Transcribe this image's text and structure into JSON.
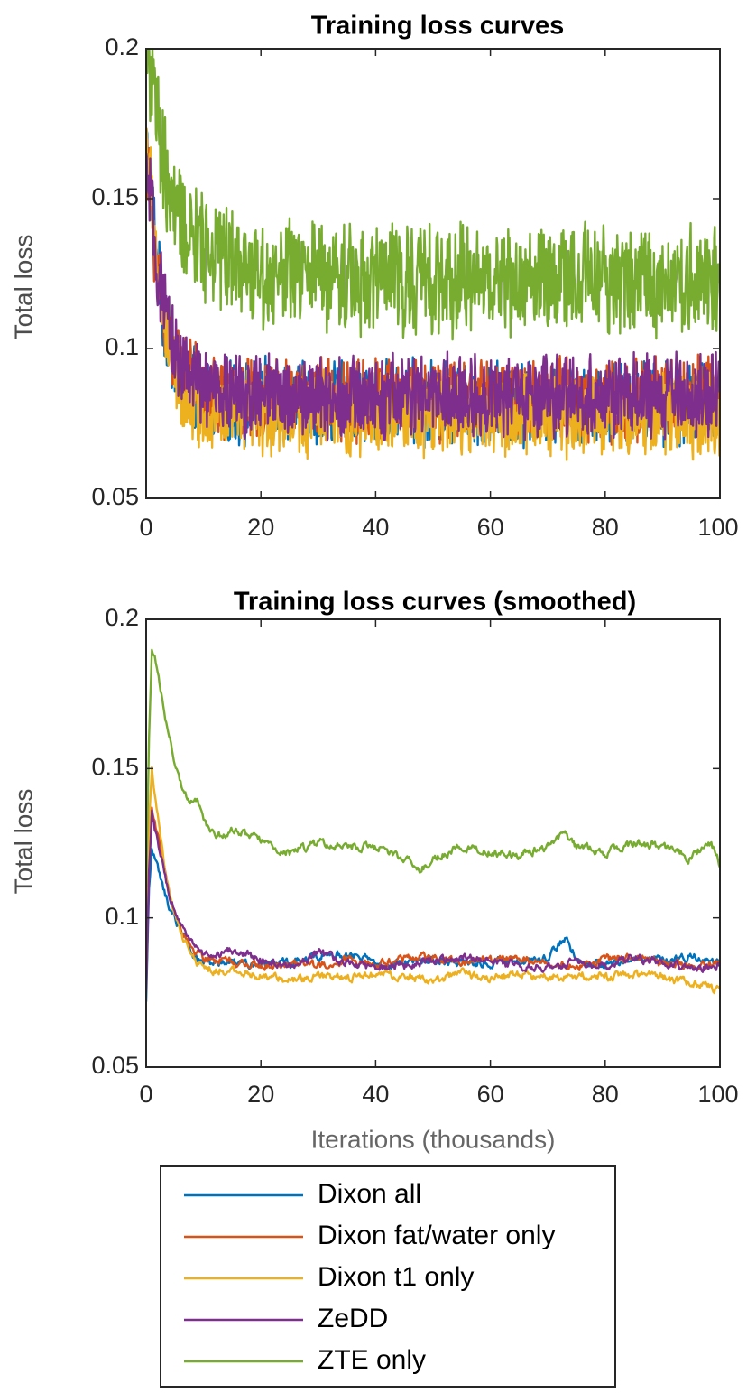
{
  "chart_data": [
    {
      "type": "line",
      "title": "Training loss curves",
      "xlabel": "",
      "ylabel": "Total loss",
      "xlim": [
        0,
        100
      ],
      "ylim": [
        0.05,
        0.2
      ],
      "xticks": [
        "0",
        "20",
        "40",
        "60",
        "80",
        "100"
      ],
      "yticks": [
        "0.05",
        "0.1",
        "0.15",
        "0.2"
      ],
      "noisy": true,
      "series": [
        {
          "name": "Dixon all",
          "color": "#0072BD",
          "x": [
            0,
            1,
            2,
            3,
            5,
            7,
            10,
            15,
            20,
            30,
            40,
            50,
            60,
            70,
            80,
            90,
            100
          ],
          "values": [
            0.17,
            0.15,
            0.125,
            0.11,
            0.095,
            0.088,
            0.083,
            0.082,
            0.082,
            0.082,
            0.082,
            0.082,
            0.082,
            0.082,
            0.082,
            0.082,
            0.082
          ]
        },
        {
          "name": "Dixon fat/water only",
          "color": "#D95319",
          "x": [
            0,
            1,
            2,
            3,
            5,
            7,
            10,
            15,
            20,
            30,
            40,
            50,
            60,
            70,
            80,
            90,
            100
          ],
          "values": [
            0.16,
            0.145,
            0.125,
            0.11,
            0.097,
            0.09,
            0.085,
            0.083,
            0.083,
            0.083,
            0.083,
            0.083,
            0.083,
            0.083,
            0.083,
            0.083,
            0.083
          ]
        },
        {
          "name": "Dixon t1 only",
          "color": "#EDB120",
          "x": [
            0,
            1,
            2,
            3,
            5,
            7,
            10,
            15,
            20,
            30,
            40,
            50,
            60,
            70,
            80,
            90,
            100
          ],
          "values": [
            0.17,
            0.15,
            0.125,
            0.11,
            0.092,
            0.084,
            0.08,
            0.078,
            0.078,
            0.078,
            0.078,
            0.078,
            0.078,
            0.078,
            0.078,
            0.078,
            0.077
          ]
        },
        {
          "name": "ZeDD",
          "color": "#7E2F8E",
          "x": [
            0,
            1,
            2,
            3,
            5,
            7,
            10,
            15,
            20,
            30,
            40,
            50,
            60,
            70,
            80,
            90,
            100
          ],
          "values": [
            0.16,
            0.145,
            0.125,
            0.112,
            0.1,
            0.092,
            0.087,
            0.085,
            0.084,
            0.084,
            0.084,
            0.084,
            0.084,
            0.084,
            0.084,
            0.084,
            0.084
          ]
        },
        {
          "name": "ZTE only",
          "color": "#77AC30",
          "x": [
            0,
            1,
            2,
            3,
            5,
            7,
            10,
            15,
            20,
            30,
            40,
            50,
            60,
            70,
            80,
            90,
            100
          ],
          "values": [
            0.2,
            0.19,
            0.175,
            0.16,
            0.145,
            0.138,
            0.135,
            0.13,
            0.125,
            0.124,
            0.124,
            0.123,
            0.123,
            0.123,
            0.123,
            0.123,
            0.123
          ]
        }
      ]
    },
    {
      "type": "line",
      "title": "Training loss curves (smoothed)",
      "xlabel": "Iterations (thousands)",
      "ylabel": "Total loss",
      "xlim": [
        0,
        100
      ],
      "ylim": [
        0.05,
        0.2
      ],
      "xticks": [
        "0",
        "20",
        "40",
        "60",
        "80",
        "100"
      ],
      "yticks": [
        "0.05",
        "0.1",
        "0.15",
        "0.2"
      ],
      "noisy": false,
      "series": [
        {
          "name": "Dixon all",
          "color": "#0072BD",
          "x": [
            0,
            0.5,
            1,
            1.5,
            2,
            3,
            4,
            6,
            8,
            10,
            15,
            20,
            25,
            30,
            35,
            40,
            45,
            50,
            55,
            60,
            65,
            70,
            73,
            75,
            80,
            85,
            90,
            95,
            100
          ],
          "values": [
            0.072,
            0.11,
            0.123,
            0.12,
            0.117,
            0.11,
            0.104,
            0.096,
            0.088,
            0.085,
            0.085,
            0.085,
            0.085,
            0.087,
            0.088,
            0.085,
            0.085,
            0.086,
            0.085,
            0.085,
            0.085,
            0.087,
            0.093,
            0.087,
            0.084,
            0.087,
            0.085,
            0.087,
            0.085
          ]
        },
        {
          "name": "Dixon fat/water only",
          "color": "#D95319",
          "x": [
            0,
            0.5,
            1,
            1.5,
            2,
            3,
            4,
            6,
            8,
            10,
            15,
            20,
            25,
            30,
            35,
            40,
            45,
            50,
            55,
            60,
            65,
            70,
            75,
            80,
            85,
            90,
            95,
            100
          ],
          "values": [
            0.088,
            0.12,
            0.138,
            0.132,
            0.128,
            0.118,
            0.108,
            0.097,
            0.09,
            0.087,
            0.085,
            0.084,
            0.085,
            0.084,
            0.086,
            0.085,
            0.086,
            0.087,
            0.085,
            0.086,
            0.086,
            0.085,
            0.084,
            0.086,
            0.087,
            0.085,
            0.084,
            0.085
          ]
        },
        {
          "name": "Dixon t1 only",
          "color": "#EDB120",
          "x": [
            0,
            0.5,
            1,
            1.5,
            2,
            3,
            4,
            6,
            8,
            10,
            15,
            20,
            25,
            30,
            35,
            40,
            45,
            50,
            55,
            60,
            65,
            70,
            75,
            80,
            85,
            90,
            95,
            100
          ],
          "values": [
            0.09,
            0.13,
            0.15,
            0.142,
            0.135,
            0.12,
            0.108,
            0.095,
            0.087,
            0.083,
            0.082,
            0.081,
            0.079,
            0.08,
            0.08,
            0.081,
            0.08,
            0.079,
            0.081,
            0.08,
            0.081,
            0.08,
            0.081,
            0.08,
            0.081,
            0.08,
            0.078,
            0.076
          ]
        },
        {
          "name": "ZeDD",
          "color": "#7E2F8E",
          "x": [
            0,
            0.5,
            1,
            1.5,
            2,
            3,
            4,
            6,
            8,
            10,
            15,
            20,
            25,
            30,
            35,
            40,
            45,
            50,
            55,
            60,
            65,
            70,
            75,
            80,
            85,
            90,
            95,
            100
          ],
          "values": [
            0.075,
            0.115,
            0.135,
            0.13,
            0.125,
            0.117,
            0.108,
            0.098,
            0.092,
            0.088,
            0.089,
            0.086,
            0.084,
            0.088,
            0.085,
            0.083,
            0.084,
            0.086,
            0.087,
            0.085,
            0.084,
            0.083,
            0.085,
            0.084,
            0.087,
            0.085,
            0.083,
            0.084
          ]
        },
        {
          "name": "ZTE only",
          "color": "#77AC30",
          "x": [
            0,
            0.5,
            1,
            1.5,
            2,
            3,
            4,
            5,
            6,
            7,
            8,
            9,
            10,
            12,
            15,
            18,
            20,
            25,
            30,
            35,
            40,
            45,
            48,
            50,
            55,
            60,
            65,
            70,
            73,
            75,
            80,
            85,
            90,
            95,
            98,
            100
          ],
          "values": [
            0.11,
            0.16,
            0.19,
            0.188,
            0.182,
            0.17,
            0.16,
            0.152,
            0.145,
            0.14,
            0.138,
            0.139,
            0.133,
            0.127,
            0.129,
            0.128,
            0.126,
            0.122,
            0.125,
            0.124,
            0.124,
            0.12,
            0.116,
            0.12,
            0.124,
            0.122,
            0.121,
            0.124,
            0.128,
            0.124,
            0.122,
            0.125,
            0.124,
            0.12,
            0.126,
            0.118
          ]
        }
      ]
    }
  ],
  "legend": {
    "placement": "bottom",
    "entries": [
      {
        "label": "Dixon all",
        "color": "#0072BD"
      },
      {
        "label": "Dixon fat/water only",
        "color": "#D95319"
      },
      {
        "label": "Dixon t1 only",
        "color": "#EDB120"
      },
      {
        "label": "ZeDD",
        "color": "#7E2F8E"
      },
      {
        "label": "ZTE only",
        "color": "#77AC30"
      }
    ]
  }
}
